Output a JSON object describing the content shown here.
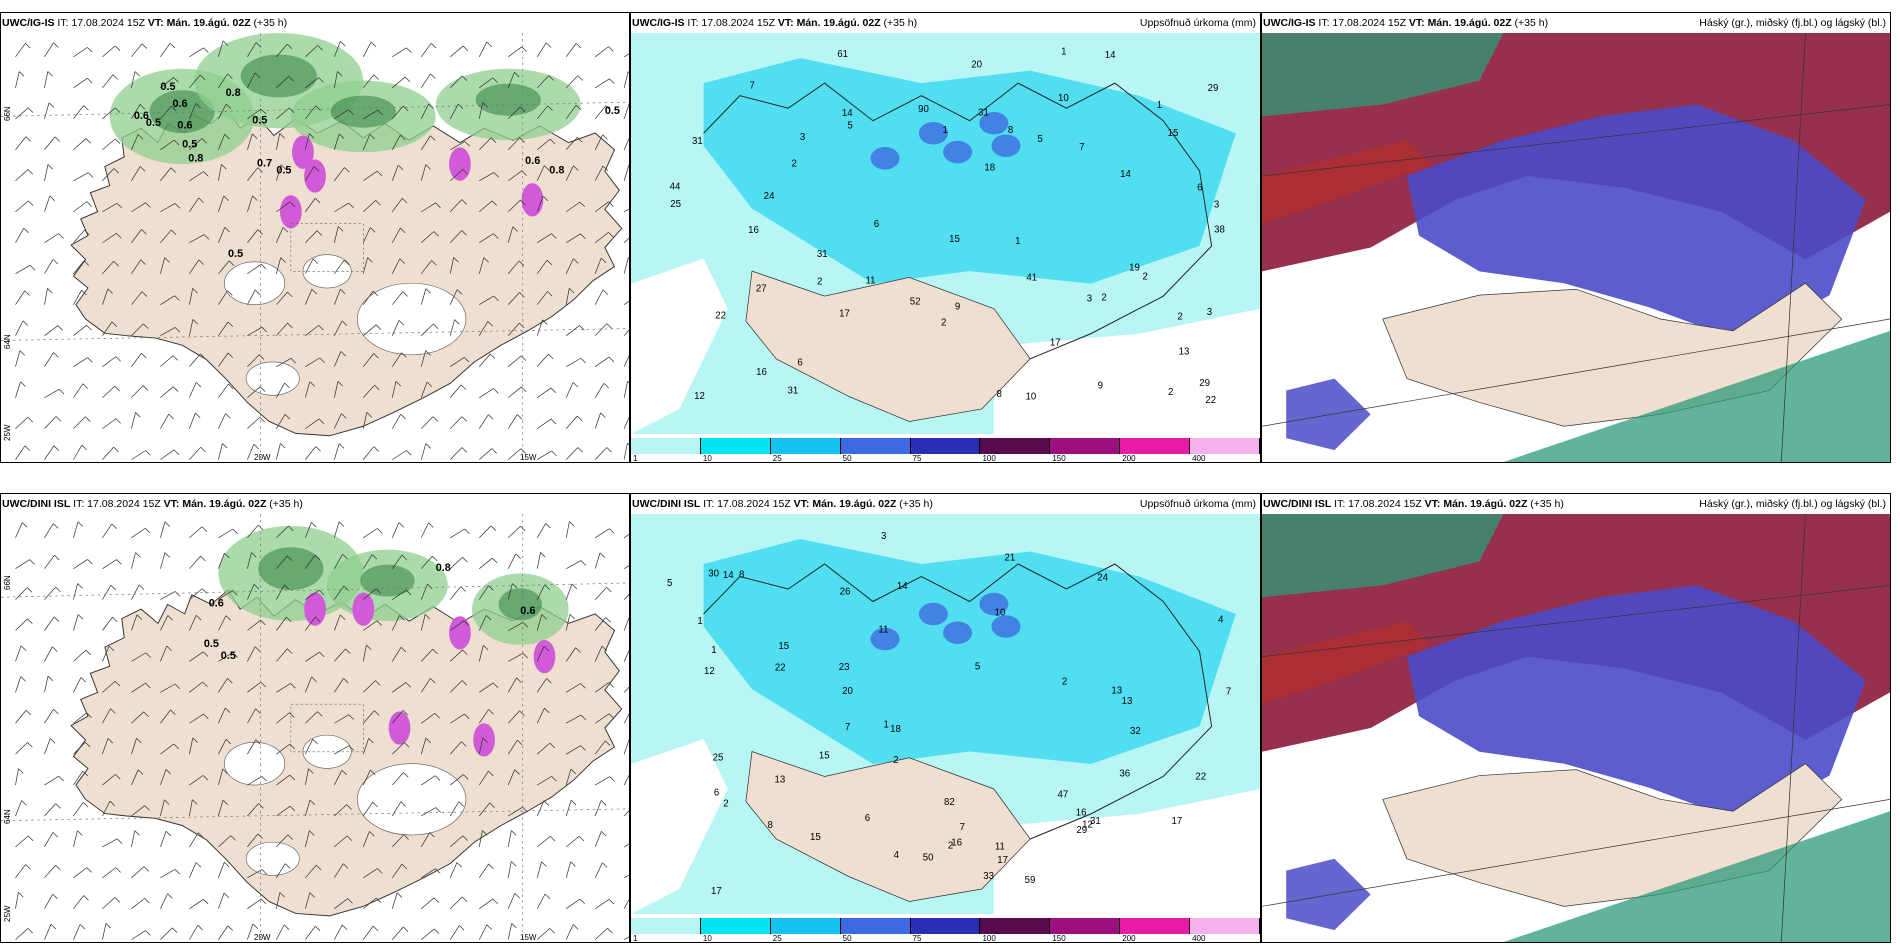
{
  "panels": [
    {
      "model": "UWC/IG-IS",
      "it": "IT: 17.08.2024 15Z",
      "vt_label": "VT:",
      "vt": "Mán. 19.ágú. 02Z",
      "lead": "(+35 h)",
      "right_title": "",
      "kind": "wind"
    },
    {
      "model": "UWC/IG-IS",
      "it": "IT: 17.08.2024 15Z",
      "vt_label": "VT:",
      "vt": "Mán. 19.ágú. 02Z",
      "lead": "(+35 h)",
      "right_title": "Uppsöfnuð úrkoma (mm)",
      "kind": "precip"
    },
    {
      "model": "UWC/IG-IS",
      "it": "IT: 17.08.2024 15Z",
      "vt_label": "VT:",
      "vt": "Mán. 19.ágú. 02Z",
      "lead": "(+35 h)",
      "right_title": "Háský (gr.), miðský (fj.bl.) og lágský (bl.)",
      "kind": "cloud"
    },
    {
      "model": "UWC/DINI ISL",
      "it": "IT: 17.08.2024 15Z",
      "vt_label": "VT:",
      "vt": "Mán. 19.ágú. 02Z",
      "lead": "(+35 h)",
      "right_title": "",
      "kind": "wind"
    },
    {
      "model": "UWC/DINI ISL",
      "it": "IT: 17.08.2024 15Z",
      "vt_label": "VT:",
      "vt": "Mán. 19.ágú. 02Z",
      "lead": "(+35 h)",
      "right_title": "Uppsöfnuð úrkoma (mm)",
      "kind": "precip"
    },
    {
      "model": "UWC/DINI ISL",
      "it": "IT: 17.08.2024 15Z",
      "vt_label": "VT:",
      "vt": "Mán. 19.ágú. 02Z",
      "lead": "(+35 h)",
      "right_title": "Háský (gr.), miðský (fj.bl.) og lágský (bl.)",
      "kind": "cloud"
    }
  ],
  "axis_labels": {
    "lon_20w": "20W",
    "lon_15w": "15W",
    "lat_66n": "66N",
    "lat_64n": "64N",
    "lat_25w": "25W"
  },
  "precip_legend": {
    "ticks": [
      "1",
      "10",
      "25",
      "50",
      "75",
      "100",
      "150",
      "200",
      "400"
    ],
    "colors": [
      "#b8f6f6",
      "#00e5ef",
      "#16c3ee",
      "#3d6ae0",
      "#2a2fb8",
      "#5a0a4e",
      "#9d0f7d",
      "#e81aa8",
      "#f5b0ee"
    ]
  },
  "colors": {
    "land": "#eedfd0",
    "precip_light": "#b8f6f6",
    "precip_mid": "#2fd6ef",
    "wind_green": "#8fcf8f",
    "wind_dark": "#2f7f3f",
    "magenta": "#d05ad8",
    "cloud_high": "#4b4bc8",
    "cloud_mid": "#8b1a3a",
    "cloud_low": "#2e9a7a"
  },
  "values": {
    "wind_top": [
      "0.5",
      "0.8",
      "0.5",
      "0.6",
      "0.6",
      "0.5",
      "0.8",
      "0.6",
      "0.5",
      "0.7",
      "0.5",
      "0.8",
      "0.6",
      "0.5",
      "0.5"
    ],
    "wind_bottom": [
      "0.6",
      "0.5",
      "0.8",
      "0.6",
      "0.5"
    ],
    "precip_top": [
      "5",
      "6",
      "5",
      "3",
      "6",
      "3",
      "11",
      "1",
      "2",
      "1",
      "2",
      "2",
      "14",
      "17",
      "22",
      "15",
      "31",
      "44",
      "61",
      "90",
      "29",
      "31",
      "16",
      "27",
      "18",
      "14",
      "12",
      "17",
      "8",
      "29",
      "31",
      "22",
      "16",
      "20",
      "24",
      "25",
      "38",
      "41",
      "15",
      "19",
      "10",
      "31",
      "52",
      "9",
      "13",
      "7",
      "8",
      "7",
      "14",
      "6",
      "2",
      "3",
      "9",
      "10",
      "2",
      "2",
      "1",
      "3",
      "2",
      "1"
    ],
    "precip_bottom": [
      "4",
      "7",
      "5",
      "5",
      "7",
      "2",
      "16",
      "25",
      "13",
      "15",
      "13",
      "17",
      "50",
      "59",
      "24",
      "17",
      "16",
      "12",
      "22",
      "13",
      "8",
      "32",
      "22",
      "20",
      "11",
      "15",
      "21",
      "33",
      "26",
      "23",
      "30",
      "47",
      "36",
      "82",
      "29",
      "11",
      "14",
      "31",
      "18",
      "15",
      "17",
      "8",
      "7",
      "6",
      "12",
      "10",
      "1",
      "2",
      "3",
      "14",
      "2",
      "1",
      "1",
      "2",
      "4",
      "6"
    ]
  }
}
